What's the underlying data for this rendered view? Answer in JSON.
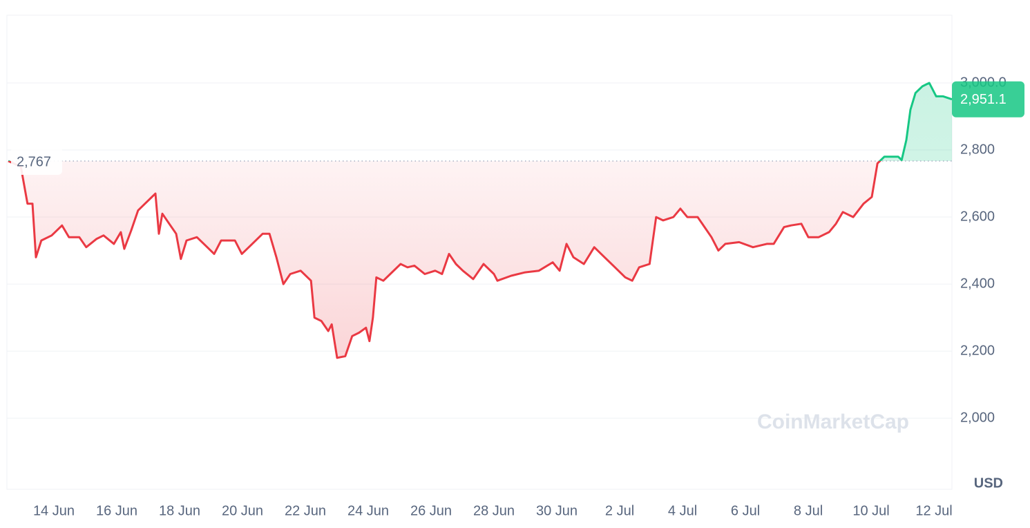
{
  "chart_data": {
    "type": "line",
    "baseline": 2767,
    "baseline_label": "2,767",
    "last_value": 2951.1,
    "last_value_label": "2,951.1",
    "currency": "USD",
    "watermark": "CoinMarketCap",
    "up_color": "#16c784",
    "down_color": "#ea3943",
    "grid": true,
    "x": [
      12.55,
      12.95,
      13.16,
      13.32,
      13.43,
      13.6,
      13.93,
      14.26,
      14.48,
      14.81,
      15.03,
      15.36,
      15.58,
      15.91,
      16.13,
      16.24,
      16.46,
      16.68,
      16.9,
      17.12,
      17.23,
      17.34,
      17.45,
      17.67,
      17.89,
      18.04,
      18.22,
      18.55,
      18.88,
      19.1,
      19.32,
      19.76,
      19.98,
      20.31,
      20.64,
      20.86,
      21.08,
      21.3,
      21.52,
      21.85,
      22.18,
      22.29,
      22.51,
      22.73,
      22.84,
      23.01,
      23.27,
      23.49,
      23.71,
      23.93,
      24.04,
      24.15,
      24.26,
      24.48,
      24.7,
      25.03,
      25.25,
      25.47,
      25.8,
      26.13,
      26.35,
      26.57,
      26.79,
      27.01,
      27.34,
      27.67,
      28.0,
      28.11,
      28.55,
      28.99,
      29.43,
      29.87,
      30.09,
      30.31,
      30.53,
      30.86,
      31.19,
      31.52,
      31.85,
      32.18,
      32.4,
      32.62,
      32.95,
      33.16,
      33.38,
      33.71,
      33.93,
      34.15,
      34.48,
      34.7,
      34.92,
      35.14,
      35.36,
      35.8,
      36.24,
      36.68,
      36.9,
      37.23,
      37.45,
      37.78,
      38.0,
      38.33,
      38.66,
      38.88,
      39.1,
      39.43,
      39.76,
      40.02,
      40.2,
      40.42,
      40.64,
      40.86,
      40.97,
      41.12,
      41.25,
      41.41,
      41.63,
      41.85,
      42.07,
      42.29,
      42.57
    ],
    "values": [
      2767,
      2750,
      2640,
      2640,
      2480,
      2530,
      2545,
      2575,
      2540,
      2540,
      2510,
      2535,
      2545,
      2520,
      2555,
      2505,
      2560,
      2620,
      2640,
      2660,
      2670,
      2550,
      2610,
      2580,
      2550,
      2475,
      2530,
      2540,
      2510,
      2490,
      2530,
      2530,
      2490,
      2520,
      2550,
      2550,
      2480,
      2400,
      2430,
      2440,
      2410,
      2300,
      2290,
      2260,
      2280,
      2180,
      2185,
      2245,
      2255,
      2270,
      2230,
      2300,
      2420,
      2410,
      2430,
      2460,
      2450,
      2455,
      2430,
      2440,
      2430,
      2490,
      2460,
      2440,
      2415,
      2460,
      2430,
      2410,
      2425,
      2435,
      2440,
      2465,
      2440,
      2520,
      2480,
      2460,
      2510,
      2480,
      2450,
      2420,
      2410,
      2450,
      2460,
      2600,
      2590,
      2600,
      2625,
      2600,
      2600,
      2570,
      2540,
      2500,
      2520,
      2525,
      2510,
      2520,
      2520,
      2570,
      2575,
      2580,
      2540,
      2540,
      2555,
      2580,
      2615,
      2600,
      2640,
      2660,
      2760,
      2780,
      2780,
      2780,
      2770,
      2830,
      2920,
      2970,
      2990,
      3000,
      2960,
      2960,
      2951.1
    ],
    "xlim": [
      12.55,
      42.57
    ],
    "xticks": [
      {
        "value": 14,
        "label": "14 Jun"
      },
      {
        "value": 16,
        "label": "16 Jun"
      },
      {
        "value": 18,
        "label": "18 Jun"
      },
      {
        "value": 20,
        "label": "20 Jun"
      },
      {
        "value": 22,
        "label": "22 Jun"
      },
      {
        "value": 24,
        "label": "24 Jun"
      },
      {
        "value": 26,
        "label": "26 Jun"
      },
      {
        "value": 28,
        "label": "28 Jun"
      },
      {
        "value": 30,
        "label": "30 Jun"
      },
      {
        "value": 32,
        "label": "2 Jul"
      },
      {
        "value": 34,
        "label": "4 Jul"
      },
      {
        "value": 36,
        "label": "6 Jul"
      },
      {
        "value": 38,
        "label": "8 Jul"
      },
      {
        "value": 40,
        "label": "10 Jul"
      },
      {
        "value": 42,
        "label": "12 Jul"
      }
    ],
    "ylim": [
      1788,
      3202
    ],
    "yticks": [
      {
        "value": 2000,
        "label": "2,000"
      },
      {
        "value": 2200,
        "label": "2,200"
      },
      {
        "value": 2400,
        "label": "2,400"
      },
      {
        "value": 2600,
        "label": "2,600"
      },
      {
        "value": 2800,
        "label": "2,800"
      },
      {
        "value": 3000,
        "label": "3,000.0"
      }
    ]
  }
}
